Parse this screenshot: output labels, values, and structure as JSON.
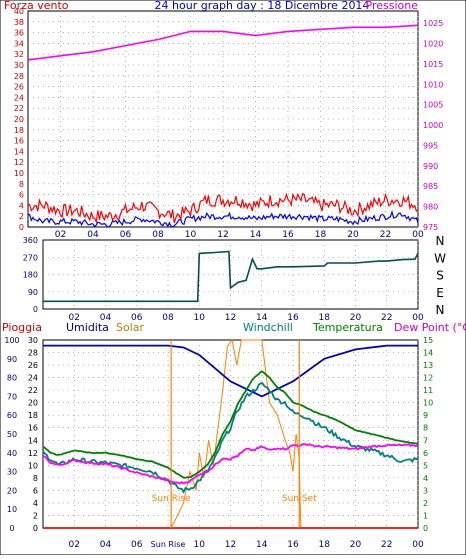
{
  "chart_data": [
    {
      "panel": "wind-pressure",
      "type": "line",
      "title": "24 hour graph day : 18 Dicembre 2014",
      "left_label": "Forza vento",
      "right_label": "Pressione",
      "x_tick_labels": [
        "02",
        "04",
        "06",
        "08",
        "10",
        "12",
        "14",
        "16",
        "18",
        "20",
        "22",
        "00"
      ],
      "left_axis": {
        "ticks": [
          0,
          2,
          4,
          6,
          8,
          10,
          12,
          14,
          16,
          18,
          20,
          22,
          24,
          26,
          28,
          30,
          32,
          34,
          36,
          38,
          40
        ],
        "ylim": [
          0,
          40
        ]
      },
      "right_axis": {
        "ticks": [
          975,
          980,
          985,
          990,
          995,
          1000,
          1005,
          1010,
          1015,
          1020,
          1025
        ],
        "ylim": [
          975,
          1028
        ]
      },
      "series": [
        {
          "key": "gust",
          "color": "#ff0000",
          "x": [
            0,
            1,
            2,
            3,
            4,
            5,
            6,
            7,
            8,
            9,
            10,
            11,
            12,
            13,
            14,
            15,
            16,
            17,
            18,
            19,
            20,
            21,
            22,
            23,
            24
          ],
          "values": [
            4,
            4,
            3,
            3,
            2,
            2,
            3,
            4,
            3,
            2,
            3,
            5,
            5,
            5,
            4,
            5,
            5,
            5,
            4,
            4,
            3,
            4,
            5,
            5,
            4
          ]
        },
        {
          "key": "wind",
          "color": "#0000ff",
          "x": [
            0,
            1,
            2,
            3,
            4,
            5,
            6,
            7,
            8,
            9,
            10,
            11,
            12,
            13,
            14,
            15,
            16,
            17,
            18,
            19,
            20,
            21,
            22,
            23,
            24
          ],
          "values": [
            2,
            1,
            1,
            1,
            0.5,
            0.5,
            1,
            1.5,
            1,
            0.5,
            1.5,
            2,
            2,
            2,
            1.5,
            2,
            2,
            2,
            1.5,
            1.5,
            1,
            1.5,
            2,
            2.5,
            1
          ]
        },
        {
          "key": "pressure",
          "color": "#ff00ff",
          "x": [
            0,
            2,
            4,
            6,
            8,
            9,
            10,
            12,
            14,
            16,
            18,
            20,
            22,
            24
          ],
          "values": [
            1016,
            1017,
            1018,
            1019.5,
            1021,
            1022,
            1023,
            1023,
            1022,
            1023,
            1023.5,
            1024,
            1024,
            1024.5
          ]
        }
      ]
    },
    {
      "panel": "wind-direction",
      "type": "line",
      "x_tick_labels": [
        "02",
        "04",
        "06",
        "08",
        "10",
        "12",
        "14",
        "16",
        "18",
        "20",
        "22",
        "00"
      ],
      "y_ticks": [
        0,
        90,
        180,
        270,
        360
      ],
      "ylim": [
        0,
        360
      ],
      "direction_labels": [
        "N",
        "W",
        "S",
        "E",
        "N"
      ],
      "series": [
        {
          "key": "direction",
          "color": "#005050",
          "x": [
            0,
            2,
            4,
            6,
            8,
            9.9,
            10,
            11,
            11.9,
            12,
            12.5,
            13,
            13.4,
            13.7,
            14,
            15,
            16,
            18,
            18.2,
            20,
            21.5,
            22,
            23,
            23.8,
            24
          ],
          "values": [
            40,
            40,
            40,
            40,
            40,
            40,
            290,
            295,
            300,
            110,
            140,
            150,
            260,
            210,
            210,
            220,
            220,
            225,
            240,
            240,
            250,
            250,
            258,
            260,
            290
          ]
        }
      ]
    },
    {
      "panel": "weather",
      "type": "line",
      "legend": [
        "Pioggia",
        "Umidita",
        "Solar",
        "Windchill",
        "Temperatura",
        "Dew Point (°C)"
      ],
      "x_tick_labels": [
        "02",
        "04",
        "06",
        "Sun Rise",
        "10",
        "12",
        "14",
        "16",
        "18",
        "20",
        "22",
        "00"
      ],
      "left_axis": {
        "ticks": [
          0,
          10,
          20,
          30,
          40,
          50,
          60,
          70,
          80,
          90,
          100
        ],
        "ylim": [
          0,
          100
        ]
      },
      "solar_axis": {
        "ticks": [
          0,
          2,
          4,
          6,
          8,
          10,
          12,
          14,
          16,
          18,
          20,
          22,
          24,
          26,
          28,
          30
        ],
        "ylim": [
          0,
          30
        ]
      },
      "right_axis": {
        "ticks": [
          0,
          1,
          2,
          3,
          4,
          5,
          6,
          7,
          8,
          9,
          10,
          11,
          12,
          13,
          14,
          15
        ],
        "ylim": [
          0,
          15
        ]
      },
      "annotations": [
        {
          "label": "Sun Rise",
          "x": 8.2
        },
        {
          "label": "Sun Set",
          "x": 16.4
        }
      ],
      "series": [
        {
          "key": "humidity",
          "color": "#0000c0",
          "axis": "left",
          "x": [
            0,
            2,
            4,
            6,
            8,
            9,
            10,
            11,
            12,
            13,
            14,
            15,
            16,
            17,
            18,
            20,
            22,
            24
          ],
          "values": [
            97,
            97,
            97,
            97,
            97,
            96,
            92,
            85,
            78,
            74,
            70,
            74,
            78,
            84,
            90,
            95,
            97,
            97
          ]
        },
        {
          "key": "solar",
          "color": "#ff8000",
          "axis": "solar",
          "x": [
            0,
            8.2,
            8.6,
            9,
            9.4,
            9.8,
            10,
            10.3,
            10.6,
            10.9,
            11.2,
            11.5,
            11.8,
            12.1,
            12.4,
            12.7,
            13,
            13.5,
            14,
            14.5,
            15,
            15.5,
            15.8,
            16,
            16.2,
            16.4,
            16.5,
            24
          ],
          "values": [
            0,
            0,
            2,
            4,
            9,
            6,
            12,
            8,
            14,
            10,
            16,
            22,
            29,
            30,
            26,
            30,
            30,
            30,
            30,
            20,
            18,
            14,
            12,
            9,
            15,
            11,
            0,
            0
          ]
        },
        {
          "key": "windchill",
          "color": "#008080",
          "axis": "right",
          "x": [
            0,
            0.5,
            1,
            2,
            3,
            4,
            5,
            6,
            7,
            8,
            8.5,
            9,
            9.5,
            10,
            10.5,
            11,
            11.5,
            12,
            12.5,
            13,
            13.5,
            14,
            14.5,
            15,
            15.5,
            16,
            16.5,
            17,
            17.5,
            18,
            19,
            20,
            21,
            22,
            23,
            24
          ],
          "values": [
            6,
            5.5,
            5,
            5.5,
            5.3,
            5.2,
            5,
            4.8,
            4.5,
            3.8,
            3.3,
            3,
            3.2,
            3.8,
            4.5,
            5.5,
            7,
            8,
            9.5,
            10.5,
            11,
            11.5,
            11,
            10.2,
            10,
            9.2,
            9,
            8.8,
            8.3,
            8,
            7.2,
            6.5,
            6.2,
            5.8,
            5.3,
            5.5
          ]
        },
        {
          "key": "temperature",
          "color": "#008000",
          "axis": "right",
          "x": [
            0,
            0.5,
            1,
            2,
            3,
            4,
            5,
            6,
            7,
            8,
            8.5,
            9,
            9.5,
            10,
            10.5,
            11,
            11.5,
            12,
            12.5,
            13,
            13.5,
            14,
            14.5,
            15,
            15.5,
            16,
            16.5,
            17,
            17.5,
            18,
            19,
            20,
            21,
            22,
            23,
            24
          ],
          "values": [
            6.5,
            6,
            5.8,
            6.2,
            6,
            6,
            5.8,
            5.5,
            5.3,
            4.8,
            4.4,
            4,
            4.1,
            4.5,
            5,
            6,
            7.5,
            8.5,
            10,
            11,
            12,
            12.5,
            12,
            11.2,
            10.8,
            10,
            9.8,
            9.5,
            9.2,
            9,
            8.5,
            7.8,
            7.5,
            7.2,
            6.9,
            6.7
          ]
        },
        {
          "key": "dewpoint",
          "color": "#ff00ff",
          "axis": "right",
          "x": [
            0,
            0.5,
            1,
            2,
            3,
            4,
            5,
            6,
            7,
            8,
            8.5,
            9,
            9.5,
            10,
            10.5,
            11,
            11.5,
            12,
            12.5,
            13,
            13.5,
            14,
            14.5,
            15,
            15.5,
            16,
            16.5,
            17,
            17.5,
            18,
            19,
            20,
            21,
            22,
            23,
            24
          ],
          "values": [
            5.8,
            5.2,
            5,
            5.4,
            5.2,
            5.1,
            4.8,
            4.4,
            4.1,
            3.8,
            3.6,
            3.6,
            3.8,
            4.3,
            4.5,
            5,
            5.6,
            5.5,
            5.8,
            6.3,
            6.2,
            6.5,
            6.2,
            6.4,
            6.3,
            6.6,
            6.6,
            6.7,
            6.5,
            6.5,
            6.4,
            6.3,
            6.5,
            6.6,
            6.6,
            6.6
          ]
        },
        {
          "key": "rain",
          "color": "#ff0000",
          "axis": "left",
          "x": [
            0,
            24
          ],
          "values": [
            0,
            0
          ]
        }
      ]
    }
  ]
}
